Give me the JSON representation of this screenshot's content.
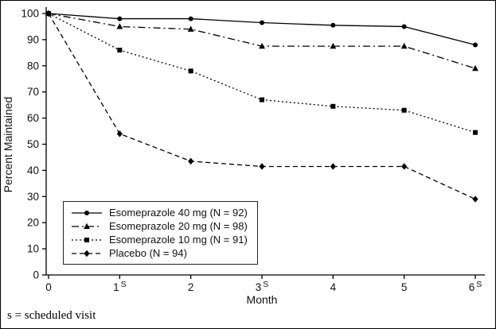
{
  "chart_data": {
    "type": "line",
    "title": "",
    "xlabel": "Month",
    "ylabel": "Percent Maintained",
    "x": [
      0,
      1,
      2,
      3,
      4,
      5,
      6
    ],
    "xlim": [
      0,
      6
    ],
    "ylim": [
      0,
      100
    ],
    "yticks": [
      0,
      10,
      20,
      30,
      40,
      50,
      60,
      70,
      80,
      90,
      100
    ],
    "scheduled_months": [
      1,
      3,
      6
    ],
    "scheduled_label": "S",
    "grid": false,
    "legend_position": "lower-left",
    "line_color": "#000000",
    "background": "#ffffff",
    "series": [
      {
        "name": "Esomeprazole 40 mg (N = 92)",
        "marker": "circle",
        "dash": "solid",
        "values": [
          100,
          98,
          98,
          96.5,
          95.5,
          95,
          88
        ]
      },
      {
        "name": "Esomeprazole 20 mg (N = 98)",
        "marker": "triangle",
        "dash": "dash-dot",
        "values": [
          100,
          95,
          94,
          87.5,
          87.5,
          87.5,
          79
        ]
      },
      {
        "name": "Esomeprazole 10 mg (N = 91)",
        "marker": "square",
        "dash": "dotted",
        "values": [
          100,
          86,
          78,
          67,
          64.5,
          63,
          54.5
        ]
      },
      {
        "name": "Placebo (N = 94)",
        "marker": "diamond",
        "dash": "dashed",
        "values": [
          100,
          54,
          43.5,
          41.5,
          41.5,
          41.5,
          29
        ]
      }
    ],
    "footnote": "s = scheduled visit"
  }
}
